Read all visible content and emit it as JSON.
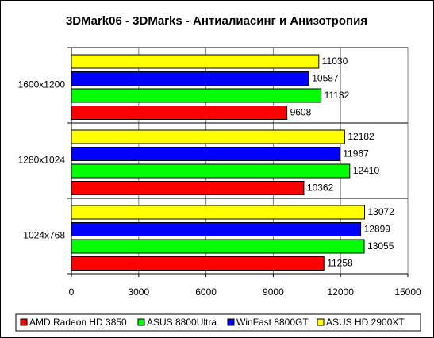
{
  "chart_data": {
    "type": "hbar",
    "title": "3DMark06 - 3DMarks - Антиалиасинг и Анизотропия",
    "categories": [
      "1600x1200",
      "1280x1024",
      "1024x768"
    ],
    "series": [
      {
        "name": "AMD Radeon HD 3850",
        "color": "#ff0000",
        "values": [
          9608,
          10362,
          11258
        ]
      },
      {
        "name": "ASUS 8800Ultra",
        "color": "#00ff00",
        "values": [
          11132,
          12410,
          13055
        ]
      },
      {
        "name": "WinFast 8800GT",
        "color": "#0000ff",
        "values": [
          10587,
          11967,
          12899
        ]
      },
      {
        "name": "ASUS HD 2900XT",
        "color": "#ffff00",
        "values": [
          11030,
          12182,
          13072
        ]
      }
    ],
    "xlim": [
      0,
      15000
    ],
    "xticks": [
      0,
      3000,
      6000,
      9000,
      12000,
      15000
    ],
    "grid": true,
    "legend": "bottom"
  }
}
